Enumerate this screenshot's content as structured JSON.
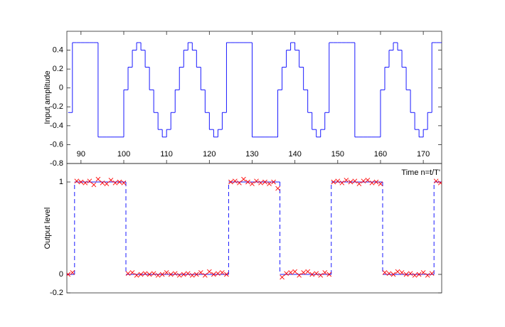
{
  "chart_data": [
    {
      "type": "line",
      "ylabel": "Input amplitude",
      "xlim": [
        86.7,
        174.3
      ],
      "ylim": [
        -0.8,
        0.6
      ],
      "xticks": [
        90,
        100,
        110,
        120,
        130,
        140,
        150,
        160,
        170
      ],
      "yticks": [
        -0.8,
        -0.6,
        -0.4,
        -0.2,
        0,
        0.2,
        0.4
      ],
      "x": [
        87,
        88,
        89,
        90,
        91,
        92,
        93,
        94,
        95,
        96,
        97,
        98,
        99,
        100,
        101,
        102,
        103,
        104,
        105,
        106,
        107,
        108,
        109,
        110,
        111,
        112,
        113,
        114,
        115,
        116,
        117,
        118,
        119,
        120,
        121,
        122,
        123,
        124,
        125,
        126,
        127,
        128,
        129,
        130,
        131,
        132,
        133,
        134,
        135,
        136,
        137,
        138,
        139,
        140,
        141,
        142,
        143,
        144,
        145,
        146,
        147,
        148,
        149,
        150,
        151,
        152,
        153,
        154,
        155,
        156,
        157,
        158,
        159,
        160,
        161,
        162,
        163,
        164,
        165,
        166,
        167,
        168,
        169,
        170,
        171,
        172,
        173,
        174
      ],
      "series": [
        {
          "color": "#0000ff",
          "drawstyle": "steps-post",
          "linestyle": "solid",
          "marker": "none",
          "values": [
            -0.26,
            0.48,
            0.48,
            0.48,
            0.48,
            0.48,
            0.48,
            -0.52,
            -0.52,
            -0.52,
            -0.52,
            -0.52,
            -0.52,
            -0.02,
            0.22,
            0.4,
            0.48,
            0.4,
            0.22,
            -0.02,
            -0.26,
            -0.44,
            -0.52,
            -0.44,
            -0.26,
            -0.02,
            0.22,
            0.4,
            0.48,
            0.4,
            0.22,
            -0.02,
            -0.26,
            -0.44,
            -0.52,
            -0.44,
            -0.26,
            0.48,
            0.48,
            0.48,
            0.48,
            0.48,
            0.48,
            -0.52,
            -0.52,
            -0.52,
            -0.52,
            -0.52,
            -0.52,
            -0.02,
            0.22,
            0.4,
            0.48,
            0.4,
            0.22,
            -0.02,
            -0.26,
            -0.44,
            -0.52,
            -0.44,
            -0.26,
            0.48,
            0.48,
            0.48,
            0.48,
            0.48,
            0.48,
            -0.52,
            -0.52,
            -0.52,
            -0.52,
            -0.52,
            -0.52,
            -0.02,
            0.22,
            0.4,
            0.48,
            0.4,
            0.22,
            -0.02,
            -0.26,
            -0.44,
            -0.52,
            -0.44,
            -0.26,
            0.48,
            0.48,
            0.48
          ]
        }
      ]
    },
    {
      "type": "line",
      "ylabel": "Output level",
      "annotation": "Time n=t/T'",
      "xlim": [
        86.7,
        174.3
      ],
      "ylim": [
        -0.2,
        1.2
      ],
      "yticks": [
        -0.2,
        0,
        1
      ],
      "x": [
        87,
        88,
        89,
        90,
        91,
        92,
        93,
        94,
        95,
        96,
        97,
        98,
        99,
        100,
        101,
        102,
        103,
        104,
        105,
        106,
        107,
        108,
        109,
        110,
        111,
        112,
        113,
        114,
        115,
        116,
        117,
        118,
        119,
        120,
        121,
        122,
        123,
        124,
        125,
        126,
        127,
        128,
        129,
        130,
        131,
        132,
        133,
        134,
        135,
        136,
        137,
        138,
        139,
        140,
        141,
        142,
        143,
        144,
        145,
        146,
        147,
        148,
        149,
        150,
        151,
        152,
        153,
        154,
        155,
        156,
        157,
        158,
        159,
        160,
        161,
        162,
        163,
        164,
        165,
        166,
        167,
        168,
        169,
        170,
        171,
        172,
        173,
        174
      ],
      "series": [
        {
          "color": "#0000ff",
          "drawstyle": "steps-mid",
          "linestyle": "dashed",
          "marker": "none",
          "values": [
            0,
            0,
            1,
            1,
            1,
            1,
            1,
            1,
            1,
            1,
            1,
            1,
            1,
            1,
            0,
            0,
            0,
            0,
            0,
            0,
            0,
            0,
            0,
            0,
            0,
            0,
            0,
            0,
            0,
            0,
            0,
            0,
            0,
            0,
            0,
            0,
            0,
            0,
            1,
            1,
            1,
            1,
            1,
            1,
            1,
            1,
            1,
            1,
            1,
            1,
            0,
            0,
            0,
            0,
            0,
            0,
            0,
            0,
            0,
            0,
            0,
            0,
            1,
            1,
            1,
            1,
            1,
            1,
            1,
            1,
            1,
            1,
            1,
            1,
            0,
            0,
            0,
            0,
            0,
            0,
            0,
            0,
            0,
            0,
            0,
            0,
            1,
            1
          ]
        },
        {
          "color": "#ff0000",
          "drawstyle": "default",
          "linestyle": "none",
          "marker": "x",
          "values": [
            0.0,
            0.02,
            1.01,
            1.0,
            0.99,
            1.01,
            0.97,
            1.03,
            0.99,
            0.98,
            1.02,
            0.99,
            1.0,
            0.99,
            0.01,
            0.02,
            -0.01,
            0.0,
            0.01,
            0.0,
            0.01,
            -0.01,
            0.0,
            0.02,
            0.0,
            0.01,
            -0.01,
            0.0,
            0.01,
            -0.01,
            0.0,
            0.02,
            -0.01,
            0.03,
            0.0,
            0.01,
            0.02,
            0.0,
            1.0,
            1.01,
            0.99,
            1.03,
            1.0,
            0.98,
            1.01,
            0.99,
            1.0,
            0.98,
            1.0,
            0.93,
            -0.03,
            0.01,
            0.02,
            0.03,
            -0.01,
            0.02,
            0.03,
            0.0,
            0.01,
            -0.01,
            0.02,
            0.0,
            1.0,
            1.01,
            0.99,
            1.02,
            1.0,
            1.01,
            0.98,
            1.01,
            1.02,
            0.99,
            1.0,
            0.98,
            0.02,
            0.01,
            0.0,
            0.03,
            0.02,
            0.0,
            0.01,
            -0.01,
            0.0,
            0.02,
            -0.01,
            0.01,
            1.01,
            0.99
          ]
        }
      ]
    }
  ]
}
